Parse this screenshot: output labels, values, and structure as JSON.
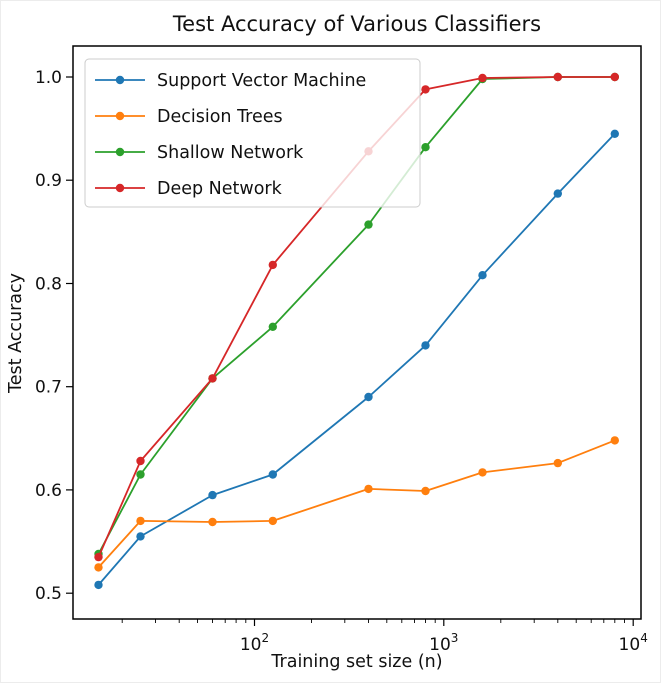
{
  "title": "Test Accuracy of Various Classifiers",
  "chart_data": {
    "type": "line",
    "title": "Test Accuracy of Various Classifiers",
    "xlabel": "Training set size (n)",
    "ylabel": "Test Accuracy",
    "x_scale": "log",
    "grid": false,
    "legend_position": "upper left",
    "xlim": [
      11,
      11000
    ],
    "ylim": [
      0.475,
      1.03
    ],
    "yticks": [
      0.5,
      0.6,
      0.7,
      0.8,
      0.9,
      1.0
    ],
    "xticks": [
      {
        "value": 100,
        "base": "10",
        "exp": "2"
      },
      {
        "value": 1000,
        "base": "10",
        "exp": "3"
      },
      {
        "value": 10000,
        "base": "10",
        "exp": "4"
      }
    ],
    "x": [
      15,
      25,
      60,
      125,
      400,
      800,
      1600,
      4000,
      8000
    ],
    "series": [
      {
        "name": "Support Vector Machine",
        "color": "#1f77b4",
        "values": [
          0.508,
          0.555,
          0.595,
          0.615,
          0.69,
          0.74,
          0.808,
          0.887,
          0.945
        ]
      },
      {
        "name": "Decision Trees",
        "color": "#ff7f0e",
        "values": [
          0.525,
          0.57,
          0.569,
          0.57,
          0.601,
          0.599,
          0.617,
          0.626,
          0.648
        ]
      },
      {
        "name": "Shallow Network",
        "color": "#2ca02c",
        "values": [
          0.538,
          0.615,
          0.708,
          0.758,
          0.857,
          0.932,
          0.998,
          1.0,
          1.0
        ]
      },
      {
        "name": "Deep Network",
        "color": "#d62728",
        "values": [
          0.535,
          0.628,
          0.708,
          0.818,
          0.928,
          0.988,
          0.999,
          1.0,
          1.0
        ]
      }
    ]
  }
}
